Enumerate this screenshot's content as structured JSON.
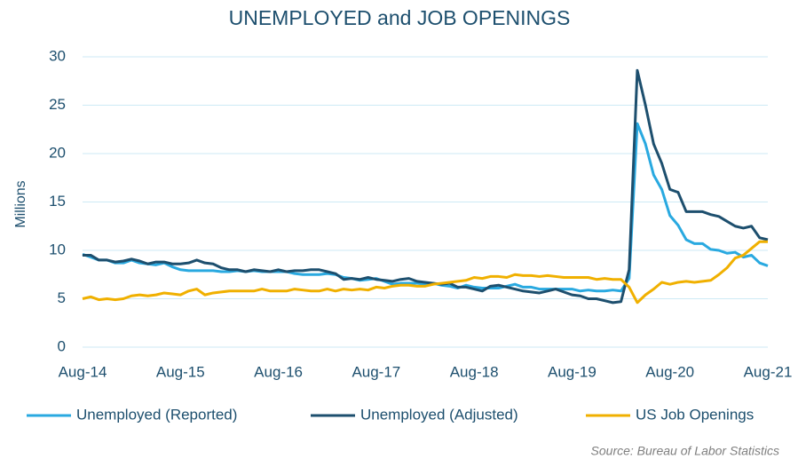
{
  "chart_data": {
    "type": "line",
    "title": "UNEMPLOYED and JOB OPENINGS",
    "y_label": "Millions",
    "source": "Source: Bureau of Labor Statistics",
    "categories": [
      "Aug-14",
      null,
      null,
      null,
      null,
      null,
      null,
      null,
      null,
      null,
      null,
      null,
      "Aug-15",
      null,
      null,
      null,
      null,
      null,
      null,
      null,
      null,
      null,
      null,
      null,
      "Aug-16",
      null,
      null,
      null,
      null,
      null,
      null,
      null,
      null,
      null,
      null,
      null,
      "Aug-17",
      null,
      null,
      null,
      null,
      null,
      null,
      null,
      null,
      null,
      null,
      null,
      "Aug-18",
      null,
      null,
      null,
      null,
      null,
      null,
      null,
      null,
      null,
      null,
      null,
      "Aug-19",
      null,
      null,
      null,
      null,
      null,
      null,
      null,
      null,
      null,
      null,
      null,
      "Aug-20",
      null,
      null,
      null,
      null,
      null,
      null,
      null,
      null,
      null,
      null,
      null,
      "Aug-21"
    ],
    "series": [
      {
        "name": "Unemployed (Reported)",
        "color": "#29a9e0",
        "values": [
          9.6,
          9.3,
          9.0,
          9.0,
          8.7,
          8.7,
          9.0,
          8.7,
          8.6,
          8.5,
          8.7,
          8.3,
          8.0,
          7.9,
          7.9,
          7.9,
          7.9,
          7.8,
          7.8,
          7.9,
          7.8,
          7.9,
          7.8,
          7.8,
          7.8,
          7.8,
          7.6,
          7.5,
          7.5,
          7.5,
          7.6,
          7.5,
          7.2,
          7.1,
          6.9,
          7.0,
          7.1,
          6.8,
          6.5,
          6.6,
          6.6,
          6.6,
          6.5,
          6.6,
          6.4,
          6.3,
          6.1,
          6.4,
          6.2,
          6.1,
          6.1,
          6.1,
          6.3,
          6.5,
          6.2,
          6.2,
          6.0,
          6.0,
          6.0,
          6.0,
          6.0,
          5.8,
          5.9,
          5.8,
          5.8,
          5.9,
          5.8,
          7.1,
          23.1,
          21.0,
          17.8,
          16.3,
          13.6,
          12.6,
          11.1,
          10.7,
          10.7,
          10.1,
          10.0,
          9.7,
          9.8,
          9.3,
          9.5,
          8.7,
          8.4
        ]
      },
      {
        "name": "Unemployed (Adjusted)",
        "color": "#1d4f6e",
        "values": [
          9.5,
          9.5,
          9.0,
          9.0,
          8.8,
          8.9,
          9.1,
          8.9,
          8.6,
          8.8,
          8.8,
          8.6,
          8.6,
          8.7,
          9.0,
          8.7,
          8.6,
          8.2,
          8.0,
          8.0,
          7.8,
          8.0,
          7.9,
          7.8,
          8.0,
          7.8,
          7.9,
          7.9,
          8.0,
          8.0,
          7.8,
          7.6,
          7.0,
          7.1,
          7.0,
          7.2,
          7.0,
          6.9,
          6.8,
          7.0,
          7.1,
          6.8,
          6.7,
          6.6,
          6.5,
          6.6,
          6.2,
          6.2,
          6.0,
          5.8,
          6.3,
          6.4,
          6.2,
          6.0,
          5.8,
          5.7,
          5.6,
          5.8,
          6.0,
          5.7,
          5.4,
          5.3,
          5.0,
          5.0,
          4.8,
          4.6,
          4.7,
          8.0,
          28.6,
          25.0,
          21.0,
          19.0,
          16.3,
          16.0,
          14.0,
          14.0,
          14.0,
          13.7,
          13.5,
          13.0,
          12.5,
          12.3,
          12.5,
          11.3,
          11.1
        ]
      },
      {
        "name": "US Job Openings",
        "color": "#f0b000",
        "values": [
          5.0,
          5.2,
          4.9,
          5.0,
          4.9,
          5.0,
          5.3,
          5.4,
          5.3,
          5.4,
          5.6,
          5.5,
          5.4,
          5.8,
          6.0,
          5.4,
          5.6,
          5.7,
          5.8,
          5.8,
          5.8,
          5.8,
          6.0,
          5.8,
          5.8,
          5.8,
          6.0,
          5.9,
          5.8,
          5.8,
          6.0,
          5.8,
          6.0,
          5.9,
          6.0,
          5.9,
          6.2,
          6.1,
          6.3,
          6.4,
          6.4,
          6.3,
          6.3,
          6.5,
          6.6,
          6.7,
          6.8,
          6.9,
          7.2,
          7.1,
          7.3,
          7.3,
          7.2,
          7.5,
          7.4,
          7.4,
          7.3,
          7.4,
          7.3,
          7.2,
          7.2,
          7.2,
          7.2,
          7.0,
          7.1,
          7.0,
          7.0,
          6.2,
          4.6,
          5.4,
          6.0,
          6.7,
          6.5,
          6.7,
          6.8,
          6.7,
          6.8,
          6.9,
          7.5,
          8.2,
          9.2,
          9.5,
          10.2,
          10.9,
          10.9
        ]
      }
    ],
    "ylim": [
      0,
      30
    ],
    "yticks": [
      0,
      5,
      10,
      15,
      20,
      25,
      30
    ],
    "grid": true,
    "legend": "bottom"
  }
}
